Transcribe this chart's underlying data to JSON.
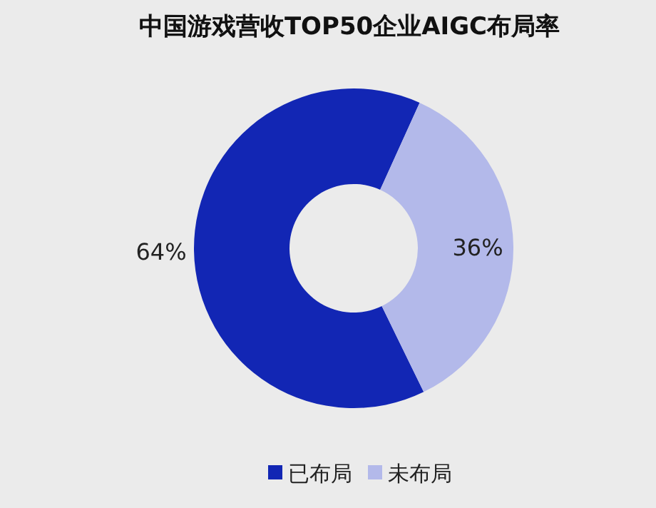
{
  "chart_data": {
    "type": "donut",
    "title": "中国游戏营收TOP50企业AIGC布局率",
    "categories": [
      "已布局",
      "未布局"
    ],
    "values": [
      64,
      36
    ],
    "colors": [
      "#1226b4",
      "#b3b9ea"
    ],
    "value_labels": [
      "64%",
      "36%"
    ],
    "legend": "bottom"
  }
}
